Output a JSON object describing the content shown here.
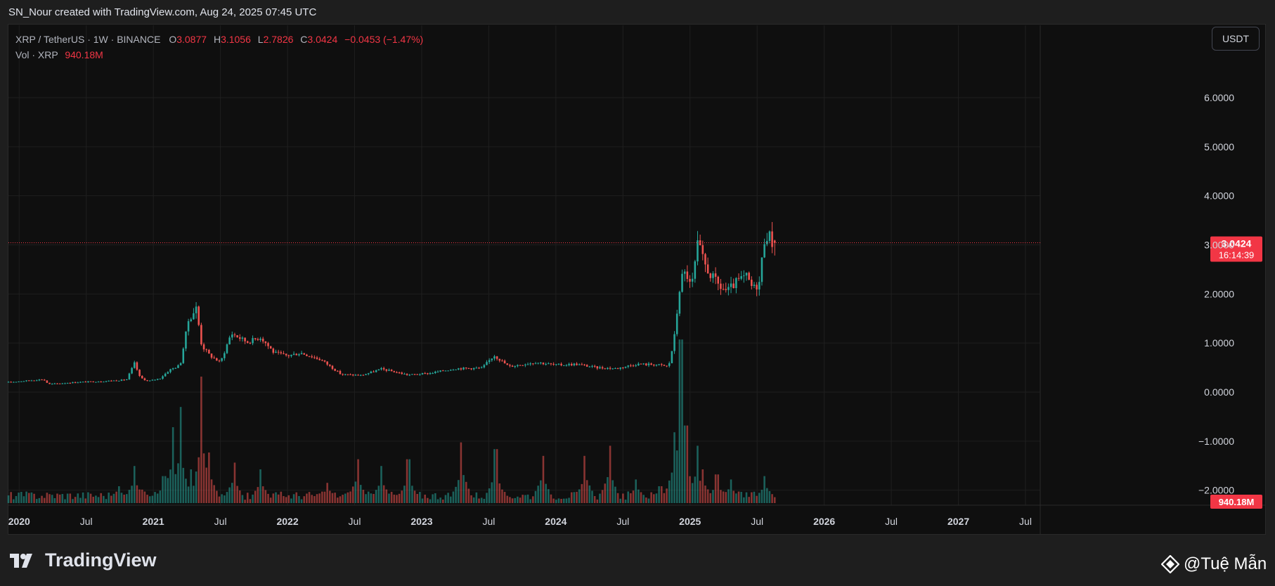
{
  "header": {
    "credit": "SN_Nour created with TradingView.com, Aug 24, 2025 07:45 UTC"
  },
  "legend": {
    "symbol": "XRP / TetherUS · 1W · BINANCE",
    "o_label": "O",
    "o": "3.0877",
    "h_label": "H",
    "h": "3.1056",
    "l_label": "L",
    "l": "2.7826",
    "c_label": "C",
    "c": "3.0424",
    "change": "−0.0453 (−1.47%)",
    "vol_label": "Vol · XRP",
    "vol": "940.18M"
  },
  "unit_button": "USDT",
  "footer": {
    "brand": "TradingView",
    "watermark": "@Tuệ Mẫn",
    "brand_icon": "tradingview-logo-icon",
    "watermark_icon": "binance-diamond-icon"
  },
  "colors": {
    "up": "#26a69a",
    "down": "#ef5350",
    "price_tag": "#f23645",
    "grid": "#1f1f1f"
  },
  "chart_data": {
    "type": "candlestick",
    "title": "XRP / TetherUS · 1W · BINANCE",
    "interval": "1W",
    "ylim": [
      -2.35,
      7.0
    ],
    "y_ticks": [
      {
        "v": 6,
        "label": "6.0000"
      },
      {
        "v": 5,
        "label": "5.0000"
      },
      {
        "v": 4,
        "label": "4.0000"
      },
      {
        "v": 3,
        "label": "3.0000"
      },
      {
        "v": 2,
        "label": "2.0000"
      },
      {
        "v": 1,
        "label": "1.0000"
      },
      {
        "v": 0,
        "label": "0.0000"
      },
      {
        "v": -1,
        "label": "−1.0000"
      },
      {
        "v": -2,
        "label": "−2.0000"
      }
    ],
    "x_range": [
      2019.92,
      2027.61
    ],
    "x_ticks": [
      {
        "t": 2020.0,
        "label": "2020",
        "bold": true
      },
      {
        "t": 2020.5,
        "label": "Jul",
        "bold": false
      },
      {
        "t": 2021.0,
        "label": "2021",
        "bold": true
      },
      {
        "t": 2021.5,
        "label": "Jul",
        "bold": false
      },
      {
        "t": 2022.0,
        "label": "2022",
        "bold": true
      },
      {
        "t": 2022.5,
        "label": "Jul",
        "bold": false
      },
      {
        "t": 2023.0,
        "label": "2023",
        "bold": true
      },
      {
        "t": 2023.5,
        "label": "Jul",
        "bold": false
      },
      {
        "t": 2024.0,
        "label": "2024",
        "bold": true
      },
      {
        "t": 2024.5,
        "label": "Jul",
        "bold": false
      },
      {
        "t": 2025.0,
        "label": "2025",
        "bold": true
      },
      {
        "t": 2025.5,
        "label": "Jul",
        "bold": false
      },
      {
        "t": 2026.0,
        "label": "2026",
        "bold": true
      },
      {
        "t": 2026.5,
        "label": "Jul",
        "bold": false
      },
      {
        "t": 2027.0,
        "label": "2027",
        "bold": true
      },
      {
        "t": 2027.5,
        "label": "Jul",
        "bold": false
      }
    ],
    "price_path": [
      [
        2019.92,
        0.2
      ],
      [
        2020.18,
        0.26
      ],
      [
        2020.22,
        0.16
      ],
      [
        2020.42,
        0.2
      ],
      [
        2020.62,
        0.22
      ],
      [
        2020.8,
        0.25
      ],
      [
        2020.86,
        0.59
      ],
      [
        2020.9,
        0.3
      ],
      [
        2020.96,
        0.22
      ],
      [
        2021.05,
        0.28
      ],
      [
        2021.12,
        0.45
      ],
      [
        2021.2,
        0.55
      ],
      [
        2021.26,
        1.45
      ],
      [
        2021.32,
        1.72
      ],
      [
        2021.36,
        0.95
      ],
      [
        2021.42,
        0.75
      ],
      [
        2021.5,
        0.6
      ],
      [
        2021.58,
        1.2
      ],
      [
        2021.7,
        1.02
      ],
      [
        2021.8,
        1.12
      ],
      [
        2021.9,
        0.8
      ],
      [
        2022.0,
        0.74
      ],
      [
        2022.1,
        0.8
      ],
      [
        2022.25,
        0.66
      ],
      [
        2022.4,
        0.36
      ],
      [
        2022.55,
        0.34
      ],
      [
        2022.7,
        0.47
      ],
      [
        2022.9,
        0.35
      ],
      [
        2023.05,
        0.38
      ],
      [
        2023.25,
        0.48
      ],
      [
        2023.45,
        0.49
      ],
      [
        2023.54,
        0.75
      ],
      [
        2023.65,
        0.52
      ],
      [
        2023.85,
        0.61
      ],
      [
        2024.0,
        0.55
      ],
      [
        2024.15,
        0.57
      ],
      [
        2024.3,
        0.5
      ],
      [
        2024.45,
        0.48
      ],
      [
        2024.6,
        0.57
      ],
      [
        2024.75,
        0.56
      ],
      [
        2024.84,
        0.52
      ],
      [
        2024.88,
        1.05
      ],
      [
        2024.93,
        2.3
      ],
      [
        2024.97,
        2.45
      ],
      [
        2025.01,
        2.1
      ],
      [
        2025.06,
        3.05
      ],
      [
        2025.1,
        2.65
      ],
      [
        2025.15,
        2.4
      ],
      [
        2025.22,
        2.15
      ],
      [
        2025.28,
        2.05
      ],
      [
        2025.35,
        2.25
      ],
      [
        2025.42,
        2.35
      ],
      [
        2025.47,
        2.1
      ],
      [
        2025.52,
        2.25
      ],
      [
        2025.55,
        3.1
      ],
      [
        2025.58,
        3.25
      ],
      [
        2025.61,
        3.05
      ],
      [
        2025.645,
        3.04
      ]
    ],
    "last_price": {
      "value": 3.0424,
      "label": "3.0424",
      "countdown": "16:14:39"
    },
    "volume_pane": {
      "last_label": "940.18M",
      "spikes": [
        [
          2020.74,
          0.1
        ],
        [
          2020.86,
          0.22
        ],
        [
          2020.92,
          0.08
        ],
        [
          2021.08,
          0.16
        ],
        [
          2021.14,
          0.45
        ],
        [
          2021.2,
          0.57
        ],
        [
          2021.28,
          0.2
        ],
        [
          2021.36,
          0.75
        ],
        [
          2021.42,
          0.3
        ],
        [
          2021.6,
          0.24
        ],
        [
          2021.8,
          0.2
        ],
        [
          2022.3,
          0.12
        ],
        [
          2022.52,
          0.26
        ],
        [
          2022.7,
          0.22
        ],
        [
          2022.9,
          0.26
        ],
        [
          2023.3,
          0.36
        ],
        [
          2023.55,
          0.32
        ],
        [
          2023.9,
          0.28
        ],
        [
          2024.22,
          0.28
        ],
        [
          2024.4,
          0.34
        ],
        [
          2024.6,
          0.14
        ],
        [
          2024.78,
          0.1
        ],
        [
          2024.88,
          0.42
        ],
        [
          2024.93,
          0.97
        ],
        [
          2024.97,
          0.46
        ],
        [
          2025.05,
          0.34
        ],
        [
          2025.1,
          0.2
        ],
        [
          2025.2,
          0.17
        ],
        [
          2025.3,
          0.14
        ],
        [
          2025.56,
          0.16
        ]
      ]
    }
  }
}
